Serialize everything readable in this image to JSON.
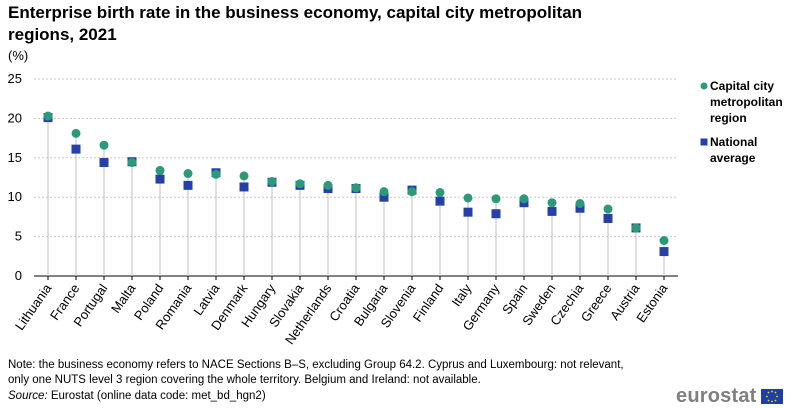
{
  "title": "Enterprise birth rate in the business economy, capital city metropolitan regions, 2021",
  "unit": "(%)",
  "legend": {
    "capital_label": "Capital city metropolitan region",
    "national_label": "National average"
  },
  "note": "Note: the business economy refers to NACE Sections B–S, excluding Group 64.2. Cyprus and Luxembourg: not relevant, only one NUTS level 3 region covering the whole territory. Belgium and Ireland: not available.",
  "source_label": "Source:",
  "source_text": "Eurostat (online data code: met_bd_hgn2)",
  "brand": "eurostat",
  "colors": {
    "capital": "#2a9a79",
    "national": "#2740a8",
    "stem": "#bfbfbf",
    "grid": "#c8c8c8"
  },
  "chart_data": {
    "type": "scatter",
    "categories": [
      "Lithuania",
      "France",
      "Portugal",
      "Malta",
      "Poland",
      "Romania",
      "Latvia",
      "Denmark",
      "Hungary",
      "Slovakia",
      "Netherlands",
      "Croatia",
      "Bulgaria",
      "Slovenia",
      "Finland",
      "Italy",
      "Germany",
      "Spain",
      "Sweden",
      "Czechia",
      "Greece",
      "Austria",
      "Estonia"
    ],
    "series": [
      {
        "name": "Capital city metropolitan region",
        "marker": "circle",
        "values": [
          20.3,
          18.1,
          16.6,
          14.4,
          13.4,
          13.0,
          12.9,
          12.7,
          12.0,
          11.7,
          11.5,
          11.2,
          10.7,
          10.7,
          10.6,
          9.9,
          9.8,
          9.8,
          9.3,
          9.2,
          8.5,
          6.1,
          4.5
        ]
      },
      {
        "name": "National average",
        "marker": "square",
        "values": [
          20.1,
          16.1,
          14.4,
          14.5,
          12.3,
          11.5,
          13.1,
          11.3,
          11.9,
          11.5,
          11.1,
          11.1,
          10.0,
          10.9,
          9.5,
          8.1,
          7.9,
          9.3,
          8.2,
          8.6,
          7.3,
          6.1,
          3.1
        ]
      }
    ],
    "ylim": [
      0,
      25
    ],
    "yticks": [
      0,
      5,
      10,
      15,
      20,
      25
    ],
    "xlabel": "",
    "ylabel": "",
    "grid": true
  }
}
